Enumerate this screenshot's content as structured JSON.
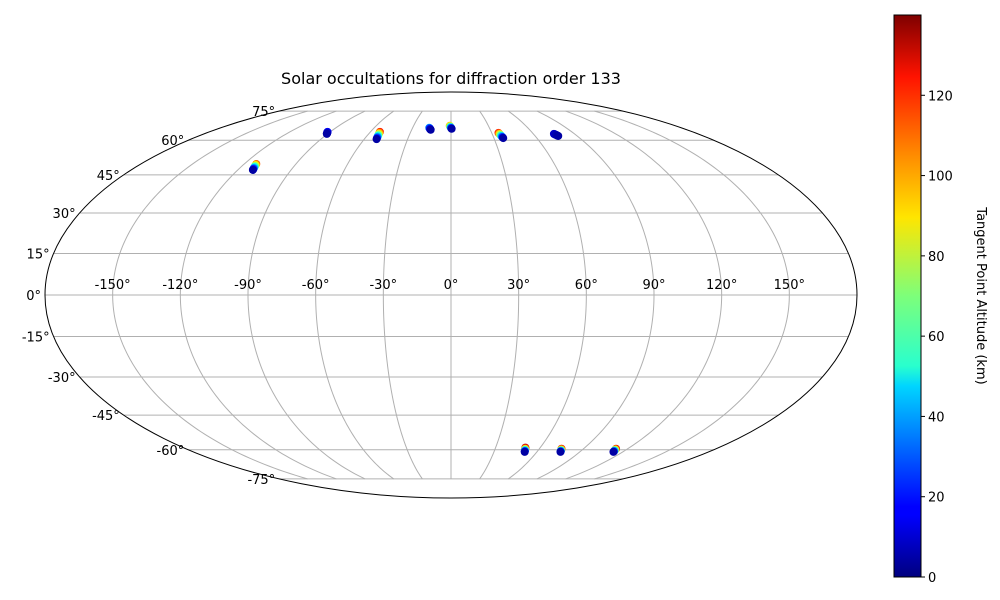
{
  "chart_data": {
    "type": "scatter",
    "projection": "mollweide",
    "title": "Solar occultations for diffraction order 133",
    "grid": true,
    "lon_ticks": [
      "-150°",
      "-120°",
      "-90°",
      "-60°",
      "-30°",
      "0°",
      "30°",
      "60°",
      "90°",
      "120°",
      "150°"
    ],
    "lat_ticks": [
      "75°",
      "60°",
      "45°",
      "30°",
      "15°",
      "0°",
      "-15°",
      "-30°",
      "-45°",
      "-60°",
      "-75°"
    ],
    "colorbar": {
      "label": "Tangent Point Altitude (km)",
      "colormap": "jet",
      "range": [
        0,
        140
      ],
      "ticks": [
        "0",
        "20",
        "40",
        "60",
        "80",
        "100",
        "120"
      ]
    },
    "occultations": [
      {
        "lon": -92,
        "lat": [
          63,
          64
        ],
        "alt": [
          5,
          20
        ]
      },
      {
        "lon": -113,
        "lat": [
          47,
          49.5
        ],
        "alt": [
          5,
          110
        ]
      },
      {
        "lon": -53,
        "lat": [
          60.5,
          64
        ],
        "alt": [
          5,
          120
        ]
      },
      {
        "lon": -17,
        "lat": [
          65,
          66
        ],
        "alt": [
          5,
          40
        ]
      },
      {
        "lon": -1,
        "lat": [
          65.5,
          67
        ],
        "alt": [
          5,
          100
        ]
      },
      {
        "lon": 35,
        "lat": [
          61,
          63.5
        ],
        "alt": [
          5,
          120
        ]
      },
      {
        "lon": 75,
        "lat": [
          62,
          63
        ],
        "alt": [
          5,
          10
        ]
      },
      {
        "lon": 50,
        "lat": [
          -61,
          -59
        ],
        "alt": [
          5,
          135
        ]
      },
      {
        "lon": 75,
        "lat": [
          -61,
          -59.5
        ],
        "alt": [
          5,
          130
        ]
      },
      {
        "lon": 112,
        "lat": [
          -61,
          -59.5
        ],
        "alt": [
          5,
          130
        ]
      }
    ]
  }
}
